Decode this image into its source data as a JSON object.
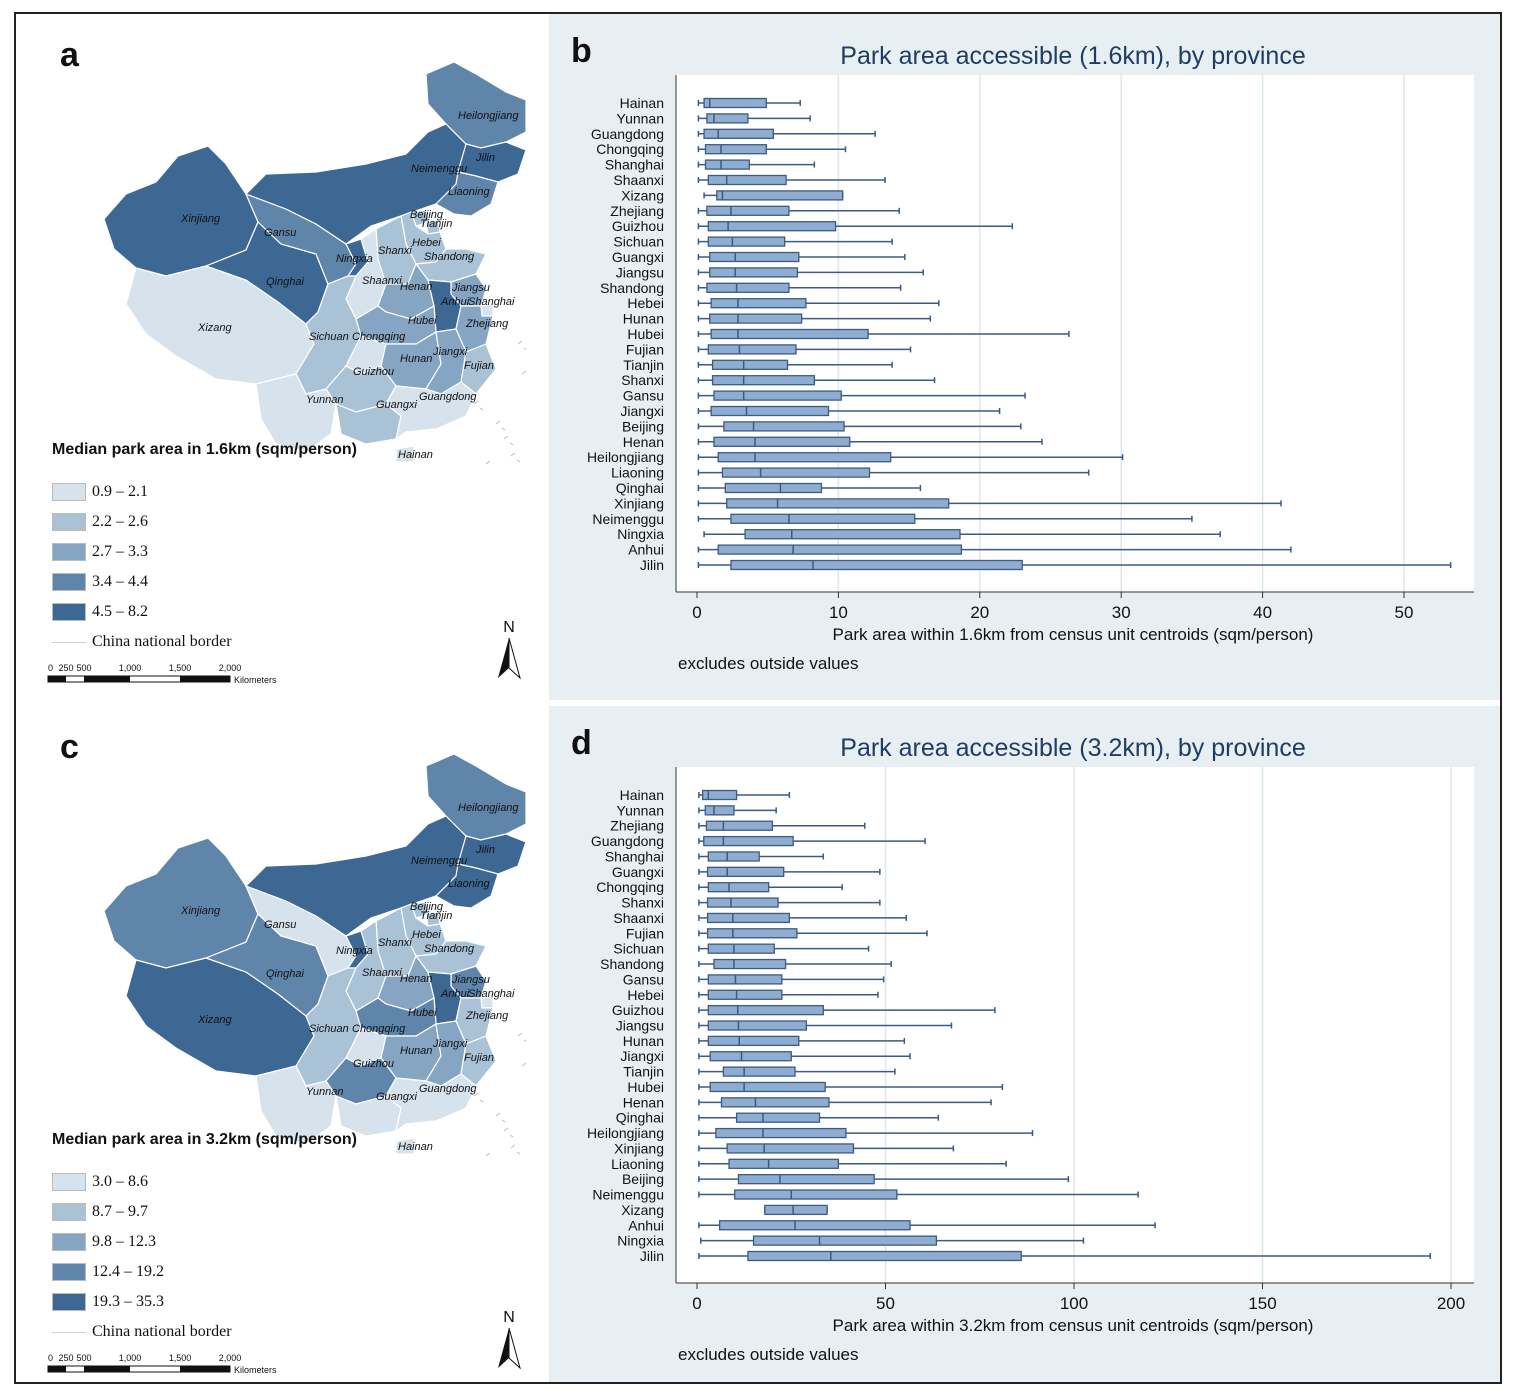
{
  "panels": {
    "a": "a",
    "b": "b",
    "c": "c",
    "d": "d"
  },
  "maps": [
    {
      "legend_title": "Median park area in 1.6km (sqm/person)",
      "classes": [
        "0.9 – 2.1",
        "2.2 – 2.6",
        "2.7 – 3.3",
        "3.4 – 4.4",
        "4.5 – 8.2"
      ],
      "class_colors": [
        "#d6e3ec",
        "#aac2d6",
        "#85a5c2",
        "#5f85ab",
        "#3d6894"
      ],
      "border_label": "China national border",
      "north": "N",
      "scale_ticks": [
        "0",
        "250",
        "500",
        "1,000",
        "1,500",
        "2,000"
      ],
      "scale_unit": "Kilometers",
      "provinces": {
        "Xinjiang": 4,
        "Xizang": 0,
        "Qinghai": 4,
        "Gansu": 3,
        "Neimenggu": 4,
        "Heilongjiang": 3,
        "Jilin": 4,
        "Liaoning": 3,
        "Beijing": 1,
        "Tianjin": 1,
        "Hebei": 1,
        "Shandong": 1,
        "Shanxi": 1,
        "Ningxia": 4,
        "Shaanxi": 0,
        "Henan": 2,
        "Jiangsu": 2,
        "Anhui": 4,
        "Shanghai": 0,
        "Hubei": 2,
        "Zhejiang": 2,
        "Sichuan": 1,
        "Chongqing": 0,
        "Hunan": 2,
        "Jiangxi": 2,
        "Fujian": 1,
        "Guizhou": 1,
        "Yunnan": 0,
        "Guangxi": 1,
        "Guangdong": 0,
        "Hainan": 0
      }
    },
    {
      "legend_title": "Median park area in 3.2km (sqm/person)",
      "classes": [
        "3.0 – 8.6",
        "8.7 – 9.7",
        "9.8 – 12.3",
        "12.4 – 19.2",
        "19.3 – 35.3"
      ],
      "class_colors": [
        "#d6e3ec",
        "#aac2d6",
        "#85a5c2",
        "#5f85ab",
        "#3d6894"
      ],
      "border_label": "China national border",
      "north": "N",
      "scale_ticks": [
        "0",
        "250",
        "500",
        "1,000",
        "1,500",
        "2,000"
      ],
      "scale_unit": "Kilometers",
      "provinces": {
        "Xinjiang": 3,
        "Xizang": 4,
        "Qinghai": 3,
        "Gansu": 0,
        "Neimenggu": 4,
        "Heilongjiang": 3,
        "Jilin": 4,
        "Liaoning": 4,
        "Beijing": 1,
        "Tianjin": 1,
        "Hebei": 1,
        "Shandong": 1,
        "Shanxi": 1,
        "Ningxia": 4,
        "Shaanxi": 1,
        "Henan": 2,
        "Jiangsu": 3,
        "Anhui": 4,
        "Shanghai": 0,
        "Hubei": 3,
        "Zhejiang": 1,
        "Sichuan": 1,
        "Chongqing": 0,
        "Hunan": 2,
        "Jiangxi": 2,
        "Fujian": 1,
        "Guizhou": 3,
        "Yunnan": 0,
        "Guangxi": 0,
        "Guangdong": 0,
        "Hainan": 0
      }
    }
  ],
  "chart_data": [
    {
      "type": "boxplot",
      "orientation": "horizontal",
      "title": "Park area accessible (1.6km), by province",
      "xlabel": "Park area within 1.6km from census unit centroids (sqm/person)",
      "note": "excludes outside values",
      "xlim": [
        0,
        55
      ],
      "xticks": [
        0,
        10,
        20,
        30,
        40,
        50
      ],
      "grid": true,
      "categories": [
        "Hainan",
        "Yunnan",
        "Guangdong",
        "Chongqing",
        "Shanghai",
        "Shaanxi",
        "Xizang",
        "Zhejiang",
        "Guizhou",
        "Sichuan",
        "Guangxi",
        "Jiangsu",
        "Shandong",
        "Hebei",
        "Hunan",
        "Hubei",
        "Fujian",
        "Tianjin",
        "Shanxi",
        "Gansu",
        "Jiangxi",
        "Beijing",
        "Henan",
        "Heilongjiang",
        "Liaoning",
        "Qinghai",
        "Xinjiang",
        "Neimenggu",
        "Ningxia",
        "Anhui",
        "Jilin"
      ],
      "boxes": [
        [
          0.1,
          0.5,
          0.9,
          4.9,
          7.3
        ],
        [
          0.1,
          0.7,
          1.2,
          3.6,
          8.0
        ],
        [
          0.1,
          0.5,
          1.5,
          5.4,
          12.6
        ],
        [
          0.1,
          0.6,
          1.7,
          4.9,
          10.5
        ],
        [
          0.1,
          0.6,
          1.7,
          3.7,
          8.3
        ],
        [
          0.1,
          0.8,
          2.1,
          6.3,
          13.3
        ],
        [
          0.5,
          1.4,
          1.8,
          10.3,
          10.3
        ],
        [
          0.1,
          0.7,
          2.4,
          6.5,
          14.3
        ],
        [
          0.1,
          0.8,
          2.2,
          9.8,
          22.3
        ],
        [
          0.1,
          0.8,
          2.5,
          6.2,
          13.8
        ],
        [
          0.1,
          0.9,
          2.7,
          7.2,
          14.7
        ],
        [
          0.1,
          0.9,
          2.7,
          7.1,
          16.0
        ],
        [
          0.1,
          0.7,
          2.8,
          6.5,
          14.4
        ],
        [
          0.1,
          1.0,
          2.9,
          7.7,
          17.1
        ],
        [
          0.1,
          0.9,
          2.9,
          7.4,
          16.5
        ],
        [
          0.1,
          1.0,
          2.9,
          12.1,
          26.3
        ],
        [
          0.1,
          0.8,
          3.0,
          7.0,
          15.1
        ],
        [
          0.1,
          1.1,
          3.3,
          6.4,
          13.8
        ],
        [
          0.1,
          1.1,
          3.3,
          8.3,
          16.8
        ],
        [
          0.1,
          1.2,
          3.3,
          10.2,
          23.2
        ],
        [
          0.1,
          1.0,
          3.5,
          9.3,
          21.4
        ],
        [
          0.1,
          1.9,
          4.0,
          10.4,
          22.9
        ],
        [
          0.1,
          1.2,
          4.1,
          10.8,
          24.4
        ],
        [
          0.1,
          1.5,
          4.1,
          13.7,
          30.1
        ],
        [
          0.1,
          1.8,
          4.5,
          12.2,
          27.7
        ],
        [
          0.1,
          2.0,
          5.9,
          8.8,
          15.8
        ],
        [
          0.1,
          2.1,
          5.7,
          17.8,
          41.3
        ],
        [
          0.1,
          2.4,
          6.5,
          15.4,
          35.0
        ],
        [
          0.5,
          3.4,
          6.7,
          18.6,
          37.0
        ],
        [
          0.1,
          1.5,
          6.8,
          18.7,
          42.0
        ],
        [
          0.1,
          2.4,
          8.2,
          23.0,
          53.3
        ]
      ]
    },
    {
      "type": "boxplot",
      "orientation": "horizontal",
      "title": "Park area accessible (3.2km), by province",
      "xlabel": "Park area within 3.2km from census unit centroids (sqm/person)",
      "note": "excludes outside values",
      "xlim": [
        0,
        205
      ],
      "xticks": [
        0,
        50,
        100,
        150,
        200
      ],
      "grid": true,
      "categories": [
        "Hainan",
        "Yunnan",
        "Zhejiang",
        "Guangdong",
        "Shanghai",
        "Guangxi",
        "Chongqing",
        "Shanxi",
        "Shaanxi",
        "Fujian",
        "Sichuan",
        "Shandong",
        "Gansu",
        "Hebei",
        "Guizhou",
        "Jiangsu",
        "Hunan",
        "Jiangxi",
        "Tianjin",
        "Hubei",
        "Henan",
        "Qinghai",
        "Heilongjiang",
        "Xinjiang",
        "Liaoning",
        "Beijing",
        "Neimenggu",
        "Xizang",
        "Anhui",
        "Ningxia",
        "Jilin"
      ],
      "boxes": [
        [
          0.5,
          1.5,
          3.0,
          10.5,
          24.5
        ],
        [
          0.5,
          2.2,
          4.5,
          9.8,
          21.0
        ],
        [
          0.5,
          2.5,
          7.0,
          20.0,
          44.5
        ],
        [
          0.5,
          1.8,
          7.0,
          25.5,
          60.5
        ],
        [
          0.5,
          3.0,
          8.0,
          16.5,
          33.5
        ],
        [
          0.5,
          2.8,
          8.0,
          23.0,
          48.5
        ],
        [
          0.5,
          3.0,
          8.5,
          19.0,
          38.5
        ],
        [
          0.5,
          2.8,
          9.0,
          21.5,
          48.5
        ],
        [
          0.5,
          2.8,
          9.5,
          24.5,
          55.5
        ],
        [
          0.5,
          2.8,
          9.5,
          26.5,
          61.0
        ],
        [
          0.5,
          3.0,
          9.8,
          20.5,
          45.5
        ],
        [
          0.5,
          4.5,
          9.8,
          23.5,
          51.5
        ],
        [
          0.5,
          3.0,
          10.2,
          22.5,
          49.5
        ],
        [
          0.5,
          3.0,
          10.5,
          22.5,
          48.0
        ],
        [
          0.5,
          3.0,
          10.8,
          33.5,
          79.0
        ],
        [
          0.5,
          3.0,
          11.0,
          29.0,
          67.5
        ],
        [
          0.5,
          3.0,
          11.2,
          27.0,
          55.0
        ],
        [
          0.5,
          3.5,
          11.8,
          25.0,
          56.5
        ],
        [
          0.5,
          7.0,
          12.5,
          26.0,
          52.5
        ],
        [
          0.5,
          3.5,
          12.5,
          34.0,
          81.0
        ],
        [
          0.5,
          6.5,
          15.5,
          35.0,
          78.0
        ],
        [
          0.5,
          10.5,
          17.5,
          32.5,
          64.0
        ],
        [
          0.5,
          5.0,
          17.5,
          39.5,
          89.0
        ],
        [
          0.5,
          8.0,
          17.8,
          41.5,
          68.0
        ],
        [
          0.5,
          8.5,
          19.0,
          37.5,
          82.0
        ],
        [
          0.5,
          11.0,
          22.0,
          47.0,
          98.5
        ],
        [
          0.5,
          10.0,
          25.0,
          53.0,
          117.0
        ],
        [
          18.0,
          18.0,
          25.5,
          34.5,
          34.5
        ],
        [
          0.5,
          6.0,
          26.0,
          56.5,
          121.5
        ],
        [
          1.0,
          15.0,
          32.5,
          63.5,
          102.5
        ],
        [
          0.5,
          13.5,
          35.5,
          86.0,
          194.5
        ]
      ]
    }
  ]
}
